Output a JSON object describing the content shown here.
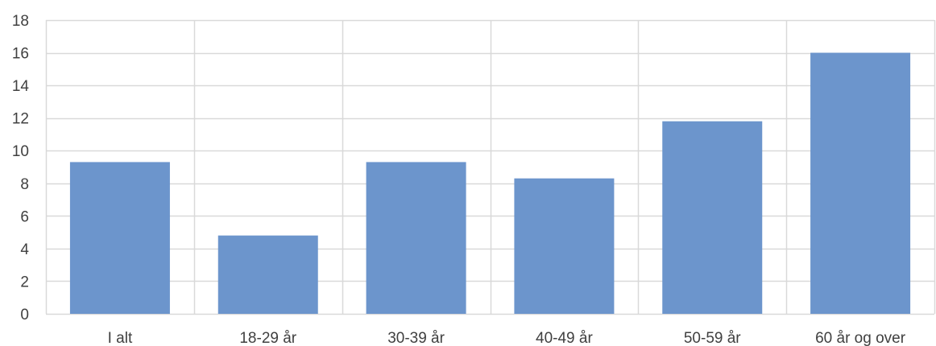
{
  "chart_data": {
    "type": "bar",
    "categories": [
      "I alt",
      "18-29 år",
      "30-39 år",
      "40-49 år",
      "50-59 år",
      "60 år og over"
    ],
    "series": [
      {
        "values": [
          9.3,
          4.8,
          9.3,
          8.3,
          11.8,
          16.0
        ]
      }
    ],
    "ylim": [
      0,
      18
    ],
    "yticks": [
      0,
      2,
      4,
      6,
      8,
      10,
      12,
      14,
      16,
      18
    ],
    "grid": true,
    "legend": "none",
    "colors": {
      "bar": "#6c95cc",
      "grid": "#d9d9d9",
      "text": "#404040"
    }
  }
}
